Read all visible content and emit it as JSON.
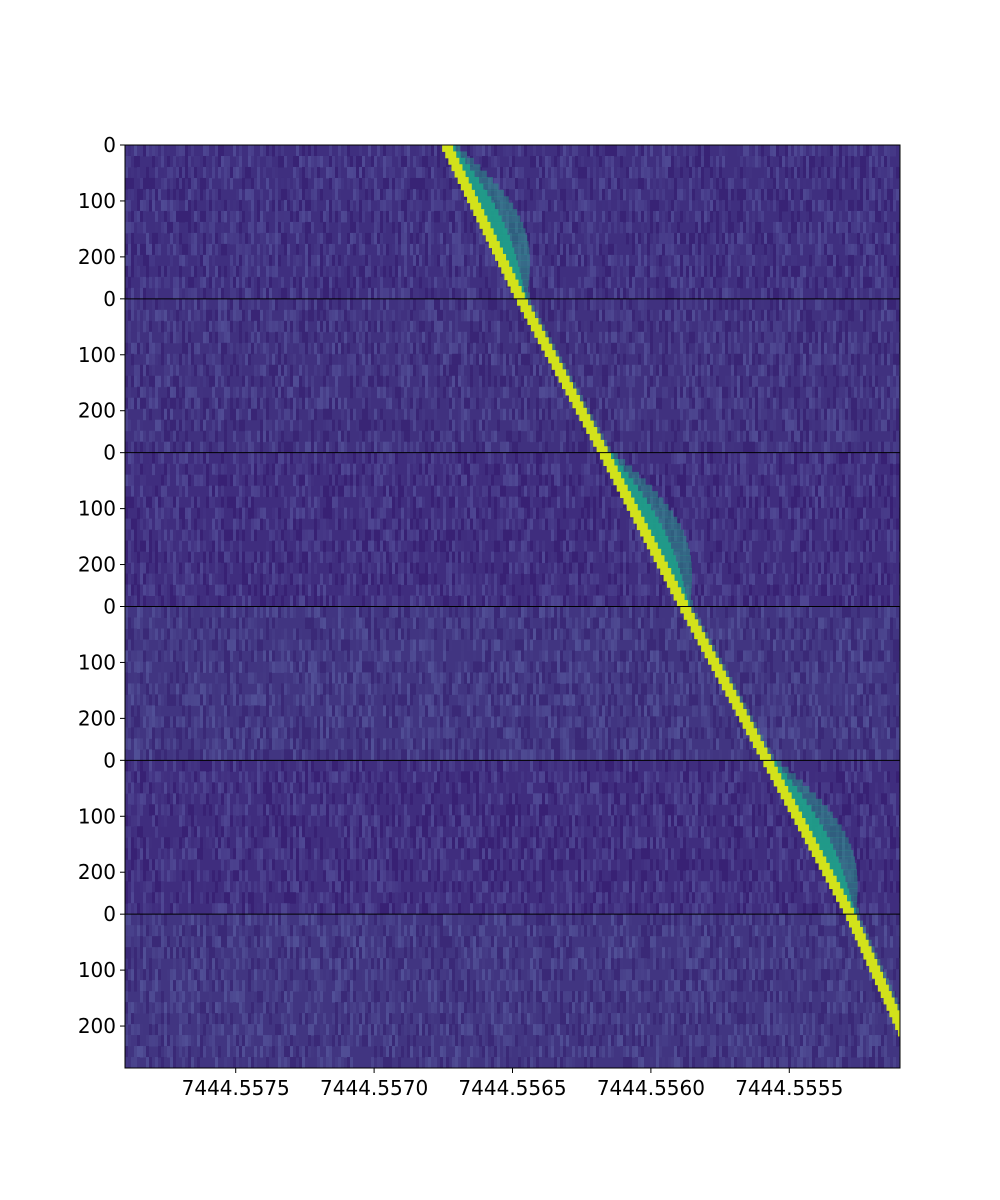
{
  "chart_data": {
    "type": "heatmap",
    "title": "",
    "xlabel": "",
    "ylabel": "",
    "colormap": "viridis",
    "x_axis_inverted": true,
    "xlim": [
      7444.5579,
      7444.5551
    ],
    "x_ticks": [
      {
        "value": 7444.5575,
        "label": "7444.5575"
      },
      {
        "value": 7444.557,
        "label": "7444.5570"
      },
      {
        "value": 7444.5565,
        "label": "7444.5565"
      },
      {
        "value": 7444.556,
        "label": "7444.5560"
      },
      {
        "value": 7444.5555,
        "label": "7444.5555"
      }
    ],
    "panel_ylim": [
      0,
      275
    ],
    "panel_y_ticks": [
      {
        "value": 0,
        "label": "0"
      },
      {
        "value": 100,
        "label": "100"
      },
      {
        "value": 200,
        "label": "200"
      }
    ],
    "panels": [
      {
        "index": 1,
        "line_x_start": 7444.55674,
        "line_x_end": 7444.55647,
        "wing": "right",
        "background": "#3f2f7f"
      },
      {
        "index": 2,
        "line_x_start": 7444.55647,
        "line_x_end": 7444.55617,
        "wing": "none",
        "background": "#40317f"
      },
      {
        "index": 3,
        "line_x_start": 7444.55617,
        "line_x_end": 7444.55588,
        "wing": "right",
        "background": "#3f2d7e"
      },
      {
        "index": 4,
        "line_x_start": 7444.55588,
        "line_x_end": 7444.55558,
        "wing": "none",
        "background": "#413581"
      },
      {
        "index": 5,
        "line_x_start": 7444.55558,
        "line_x_end": 7444.55528,
        "wing": "right",
        "background": "#3f2d7e"
      },
      {
        "index": 6,
        "line_x_start": 7444.55528,
        "line_x_end": 7444.55503,
        "wing": "none",
        "background": "#413581"
      }
    ],
    "colors": {
      "line_peak": "#d2e21b",
      "wing": "#2a9289",
      "separator": "#000000"
    }
  }
}
